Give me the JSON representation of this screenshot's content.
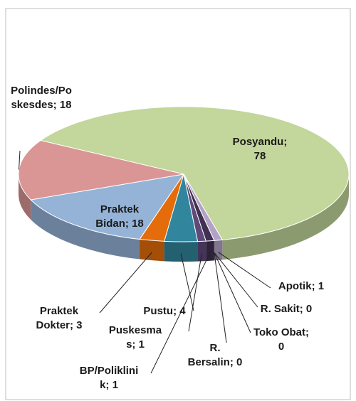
{
  "chart_data": {
    "type": "pie3d",
    "values": [
      78,
      1,
      0,
      0,
      0,
      1,
      1,
      4,
      3,
      18,
      18
    ],
    "value_labels": [
      "Posyandu; 78",
      "Apotik; 1",
      "R. Sakit; 0",
      "Toko Obat; 0",
      "R. Bersalin; 0",
      "BP/Poliklinik; 1",
      "Puskesmas; 1",
      "Pustu; 4",
      "Praktek Dokter; 3",
      "Praktek Bidan; 18",
      "Polindes/Poskesdes; 18"
    ],
    "colors": [
      "#c3d69b",
      "#b3a2c7",
      "#8064a2",
      "#4f6228",
      "#77933c",
      "#403152",
      "#5f497a",
      "#31859c",
      "#e46c0a",
      "#95b3d7",
      "#d99694"
    ]
  }
}
